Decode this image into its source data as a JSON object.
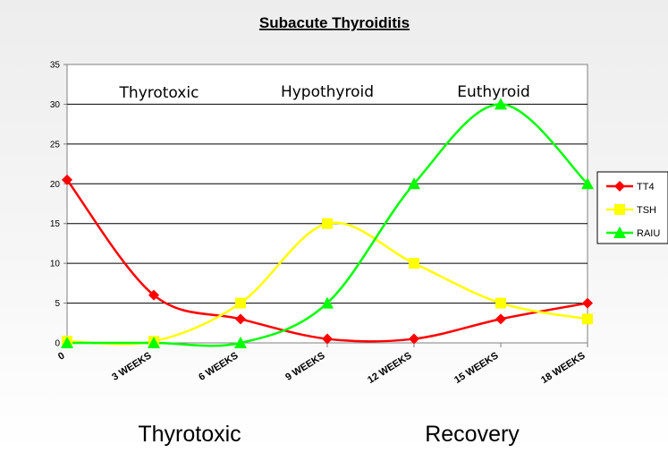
{
  "chart_data": {
    "type": "line",
    "title": "Subacute Thyroiditis",
    "xlabel": "",
    "ylabel": "",
    "categories": [
      "0",
      "3 WEEKS",
      "6 WEEKS",
      "9 WEEKS",
      "12 WEEKS",
      "15 WEEKS",
      "18 WEEKS"
    ],
    "ylim": [
      0,
      35
    ],
    "yticks": [
      "0",
      "5",
      "10",
      "15",
      "20",
      "25",
      "30",
      "35"
    ],
    "grid": true,
    "smooth": true,
    "legend_position": "right",
    "series": [
      {
        "name": "TT4",
        "color": "#ff0000",
        "marker": "diamond",
        "values": [
          20.5,
          6,
          3,
          0.5,
          0.5,
          3,
          5
        ]
      },
      {
        "name": "TSH",
        "color": "#ffff00",
        "marker": "square",
        "values": [
          0.2,
          0.2,
          5,
          15,
          10,
          5,
          3
        ]
      },
      {
        "name": "RAIU",
        "color": "#00ff00",
        "marker": "triangle",
        "values": [
          0,
          0,
          0,
          5,
          20,
          30,
          20
        ]
      }
    ],
    "annotations": [
      "Thyrotoxic",
      "Hypothyroid",
      "Euthyroid"
    ]
  },
  "footer": {
    "left_label": "Thyrotoxic",
    "right_label": "Recovery"
  }
}
